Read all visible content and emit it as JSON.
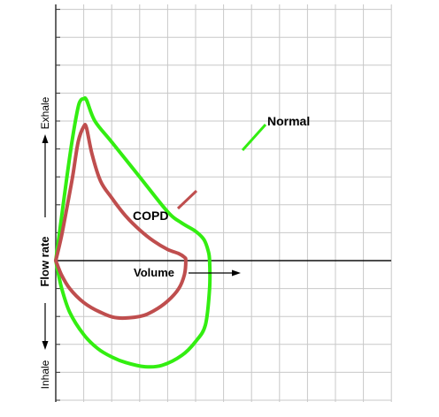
{
  "chart_data": {
    "type": "line",
    "title": "",
    "xlabel": "Volume",
    "ylabel": "Flow rate",
    "ylabel_top": "Exhale",
    "ylabel_bottom": "Inhale",
    "grid": true,
    "series": [
      {
        "name": "Normal",
        "color": "#33ee11",
        "points": [
          [
            0.0,
            0.0
          ],
          [
            0.2,
            1.5
          ],
          [
            0.4,
            3.0
          ],
          [
            0.6,
            4.4
          ],
          [
            0.8,
            5.5
          ],
          [
            0.9,
            5.75
          ],
          [
            1.0,
            5.8
          ],
          [
            1.1,
            5.75
          ],
          [
            1.4,
            5.0
          ],
          [
            2.0,
            4.25
          ],
          [
            3.0,
            3.0
          ],
          [
            4.0,
            1.75
          ],
          [
            4.5,
            1.35
          ],
          [
            5.0,
            1.05
          ],
          [
            5.3,
            0.75
          ],
          [
            5.45,
            0.35
          ],
          [
            5.5,
            0.0
          ],
          [
            5.5,
            -1.0
          ],
          [
            5.35,
            -2.3
          ],
          [
            5.0,
            -2.9
          ],
          [
            4.5,
            -3.4
          ],
          [
            3.8,
            -3.75
          ],
          [
            3.2,
            -3.8
          ],
          [
            2.5,
            -3.65
          ],
          [
            2.0,
            -3.45
          ],
          [
            1.5,
            -3.15
          ],
          [
            1.0,
            -2.65
          ],
          [
            0.5,
            -1.85
          ],
          [
            0.2,
            -0.95
          ],
          [
            0.0,
            0.0
          ]
        ]
      },
      {
        "name": "COPD",
        "color": "#bf4e4e",
        "points": [
          [
            0.0,
            0.0
          ],
          [
            0.2,
            0.85
          ],
          [
            0.4,
            1.9
          ],
          [
            0.6,
            3.0
          ],
          [
            0.8,
            4.25
          ],
          [
            1.0,
            4.8
          ],
          [
            1.1,
            4.75
          ],
          [
            1.3,
            3.8
          ],
          [
            1.6,
            2.85
          ],
          [
            2.0,
            2.25
          ],
          [
            2.5,
            1.6
          ],
          [
            3.0,
            1.1
          ],
          [
            3.5,
            0.7
          ],
          [
            4.0,
            0.4
          ],
          [
            4.4,
            0.25
          ],
          [
            4.6,
            0.12
          ],
          [
            4.65,
            0.0
          ],
          [
            4.6,
            -0.5
          ],
          [
            4.4,
            -1.0
          ],
          [
            4.0,
            -1.45
          ],
          [
            3.5,
            -1.8
          ],
          [
            3.0,
            -2.0
          ],
          [
            2.2,
            -2.05
          ],
          [
            1.6,
            -1.85
          ],
          [
            1.0,
            -1.5
          ],
          [
            0.5,
            -1.0
          ],
          [
            0.2,
            -0.5
          ],
          [
            0.0,
            0.0
          ]
        ]
      }
    ],
    "annotations": [
      "Normal",
      "COPD"
    ],
    "xlim": [
      0,
      6.3
    ],
    "ylim": [
      -4.3,
      6.3
    ]
  }
}
